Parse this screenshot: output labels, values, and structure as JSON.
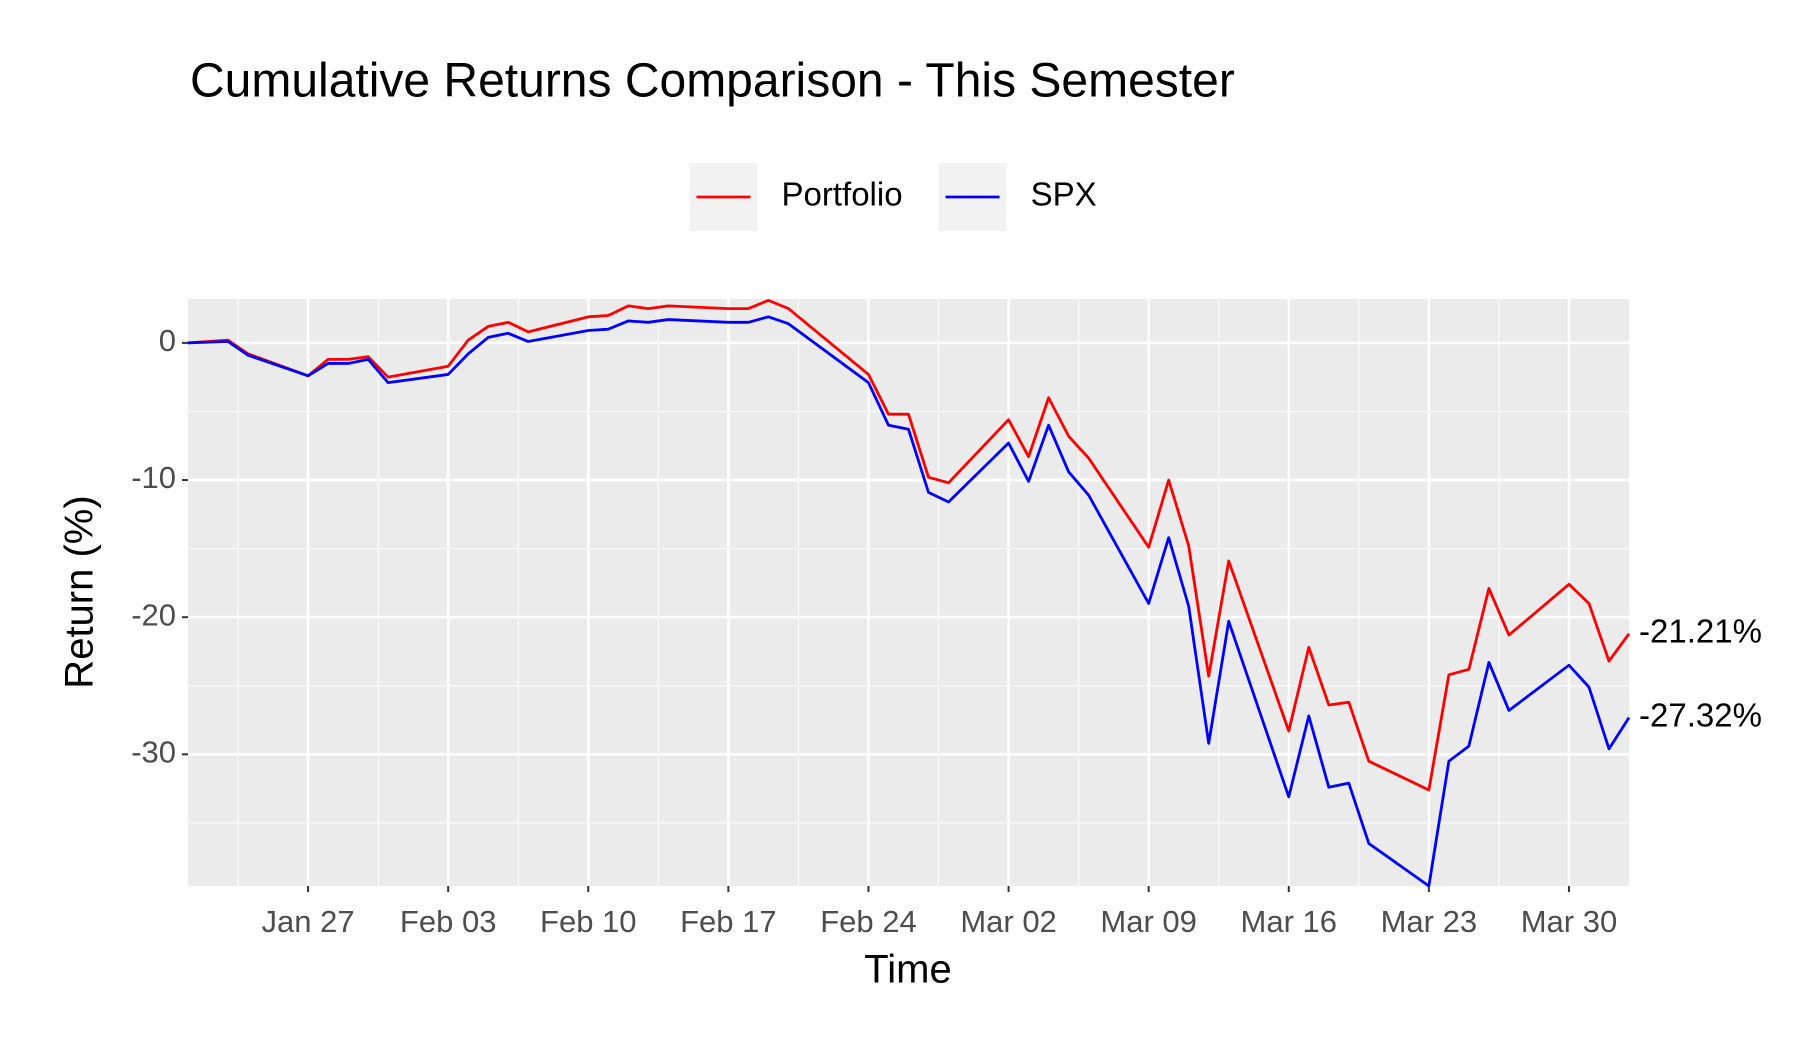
{
  "chart_data": {
    "type": "line",
    "title": "Cumulative Returns Comparison - This Semester",
    "xlabel": "Time",
    "ylabel": "Return (%)",
    "x": [
      -6,
      -4,
      -3,
      0,
      1,
      2,
      3,
      4,
      7,
      8,
      9,
      10,
      11,
      14,
      15,
      16,
      17,
      18,
      21,
      22,
      23,
      24,
      28,
      29,
      30,
      31,
      32,
      35,
      36,
      37,
      38,
      39,
      42,
      43,
      44,
      45,
      46,
      49,
      50,
      51,
      52,
      53,
      56,
      57,
      58,
      59,
      60,
      63,
      64,
      65,
      66
    ],
    "series": [
      {
        "name": "Portfolio",
        "color": "#ff0000",
        "values": [
          0,
          0.2,
          -0.8,
          -2.4,
          -1.2,
          -1.2,
          -1.0,
          -2.5,
          -1.7,
          0.2,
          1.2,
          1.5,
          0.8,
          1.9,
          2.0,
          2.7,
          2.5,
          2.7,
          2.5,
          2.5,
          3.1,
          2.5,
          -2.3,
          -5.2,
          -5.2,
          -9.8,
          -10.2,
          -5.6,
          -8.3,
          -4.0,
          -6.8,
          -8.4,
          -14.9,
          -10.0,
          -14.8,
          -24.3,
          -15.9,
          -28.3,
          -22.2,
          -26.4,
          -26.2,
          -30.5,
          -32.6,
          -24.2,
          -23.8,
          -17.9,
          -21.3,
          -17.6,
          -19.0,
          -23.2,
          -21.21
        ],
        "value_labels": [
          null,
          null,
          null,
          null,
          null,
          null,
          null,
          null,
          null,
          null,
          null,
          null,
          null,
          null,
          null,
          null,
          null,
          null,
          null,
          null,
          null,
          null,
          null,
          null,
          null,
          null,
          null,
          null,
          null,
          null,
          null,
          null,
          null,
          null,
          null,
          null,
          null,
          null,
          null,
          null,
          null,
          null,
          null,
          null,
          null,
          null,
          null,
          null,
          null,
          null,
          "-21.21%"
        ]
      },
      {
        "name": "SPX",
        "color": "#0000ff",
        "values": [
          0,
          0.1,
          -0.9,
          -2.4,
          -1.5,
          -1.5,
          -1.2,
          -2.9,
          -2.3,
          -0.8,
          0.4,
          0.7,
          0.1,
          0.9,
          1.0,
          1.6,
          1.5,
          1.7,
          1.5,
          1.5,
          1.9,
          1.4,
          -2.9,
          -6.0,
          -6.3,
          -10.9,
          -11.6,
          -7.3,
          -10.1,
          -6.0,
          -9.4,
          -11.1,
          -19.0,
          -14.2,
          -19.2,
          -29.2,
          -20.3,
          -33.1,
          -27.2,
          -32.4,
          -32.1,
          -36.5,
          -39.6,
          -30.5,
          -29.4,
          -23.3,
          -26.8,
          -23.5,
          -25.1,
          -29.6,
          -27.32
        ],
        "value_labels": [
          null,
          null,
          null,
          null,
          null,
          null,
          null,
          null,
          null,
          null,
          null,
          null,
          null,
          null,
          null,
          null,
          null,
          null,
          null,
          null,
          null,
          null,
          null,
          null,
          null,
          null,
          null,
          null,
          null,
          null,
          null,
          null,
          null,
          null,
          null,
          null,
          null,
          null,
          null,
          null,
          null,
          null,
          null,
          null,
          null,
          null,
          null,
          null,
          null,
          null,
          "-27.32%"
        ]
      }
    ],
    "xlim": [
      -6,
      66
    ],
    "xticks": [
      {
        "value": 0,
        "label": "Jan 27"
      },
      {
        "value": 7,
        "label": "Feb 03"
      },
      {
        "value": 14,
        "label": "Feb 10"
      },
      {
        "value": 21,
        "label": "Feb 17"
      },
      {
        "value": 28,
        "label": "Feb 24"
      },
      {
        "value": 35,
        "label": "Mar 02"
      },
      {
        "value": 42,
        "label": "Mar 09"
      },
      {
        "value": 49,
        "label": "Mar 16"
      },
      {
        "value": 56,
        "label": "Mar 23"
      },
      {
        "value": 63,
        "label": "Mar 30"
      }
    ],
    "ylim": [
      -39.6,
      3.2
    ],
    "yticks": [
      -30,
      -20,
      -10,
      0
    ],
    "grid": true,
    "legend": "top"
  }
}
